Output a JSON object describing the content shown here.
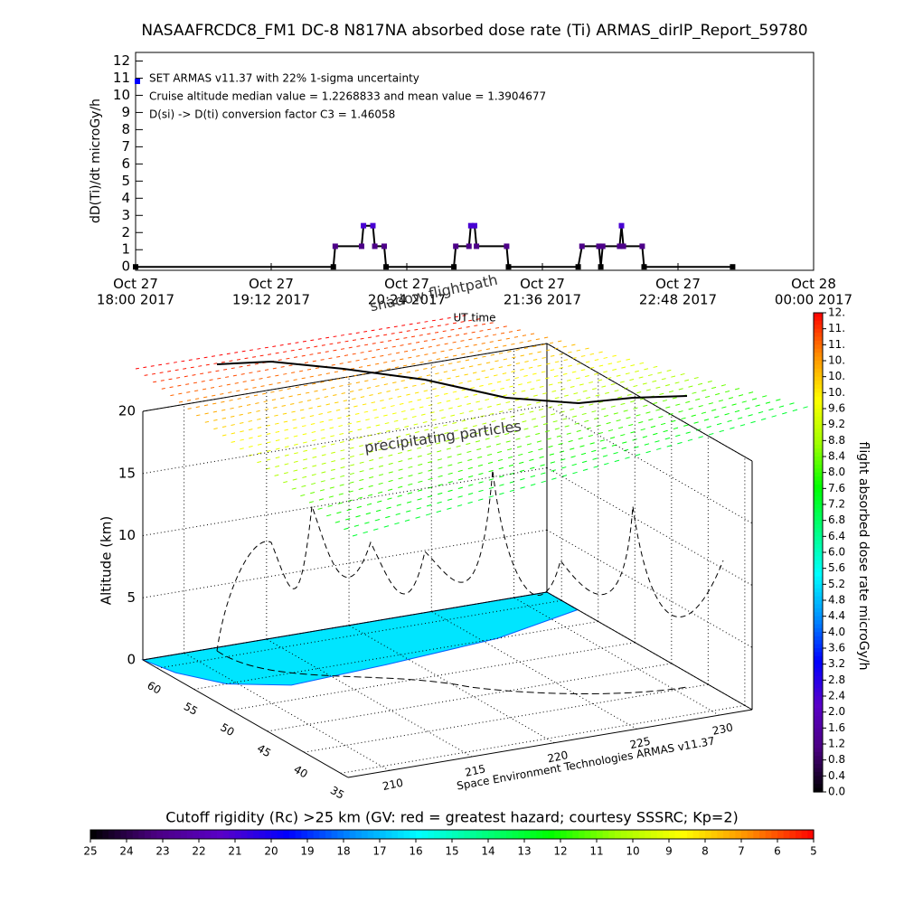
{
  "chart_data": [
    {
      "type": "line",
      "title": "NASAAFRCDC8_FM1 DC-8   N817NA absorbed dose rate (Ti) ARMAS_dirIP_Report_59780",
      "xlabel": "UT time",
      "ylabel": "dD(Ti)/dt microGy/h",
      "annotations": [
        "SET ARMAS v11.37 with 22% 1-sigma uncertainty",
        "Cruise altitude median value = 1.2268833 and mean value = 1.3904677",
        "D(si) -> D(ti) conversion factor C3 = 1.46058"
      ],
      "x": [
        "2017-10-27 18:00",
        "2017-10-27 19:45",
        "2017-10-27 19:46",
        "2017-10-27 20:00",
        "2017-10-27 20:01",
        "2017-10-27 20:06",
        "2017-10-27 20:07",
        "2017-10-27 20:12",
        "2017-10-27 20:13",
        "2017-10-27 20:49",
        "2017-10-27 20:50",
        "2017-10-27 20:57",
        "2017-10-27 20:58",
        "2017-10-27 21:00",
        "2017-10-27 21:01",
        "2017-10-27 21:17",
        "2017-10-27 21:18",
        "2017-10-27 21:55",
        "2017-10-27 21:57",
        "2017-10-27 22:06",
        "2017-10-27 22:07",
        "2017-10-27 22:08",
        "2017-10-27 22:17",
        "2017-10-27 22:18",
        "2017-10-27 22:19",
        "2017-10-27 22:29",
        "2017-10-27 22:30",
        "2017-10-27 23:17"
      ],
      "series": [
        {
          "color": "#000000",
          "values": [
            0,
            0,
            1.2,
            1.2,
            2.4,
            2.4,
            1.2,
            1.2,
            0,
            0,
            1.2,
            1.2,
            2.4,
            2.4,
            1.2,
            1.2,
            0,
            0,
            1.2,
            1.2,
            0,
            1.2,
            1.2,
            2.4,
            1.2,
            1.2,
            0,
            0
          ]
        }
      ],
      "xlim": [
        "2017-10-27 18:00",
        "2017-10-28 00:00"
      ],
      "xticks": [
        {
          "value": "2017-10-27 18:00",
          "label": "Oct 27\n18:00 2017"
        },
        {
          "value": "2017-10-27 19:12",
          "label": "Oct 27\n19:12 2017"
        },
        {
          "value": "2017-10-27 20:24",
          "label": "Oct 27\n20:24 2017"
        },
        {
          "value": "2017-10-27 21:36",
          "label": "Oct 27\n21:36 2017"
        },
        {
          "value": "2017-10-27 22:48",
          "label": "Oct 27\n22:48 2017"
        },
        {
          "value": "2017-10-28 00:00",
          "label": "Oct 28\n00:00 2017"
        }
      ],
      "ylim": [
        -0.2,
        12.5
      ],
      "yticks": [
        0,
        1,
        2,
        3,
        4,
        5,
        6,
        7,
        8,
        9,
        10,
        11,
        12
      ]
    },
    {
      "type": "scatter3d",
      "zlabel": "Altitude (km)",
      "zlim": [
        0,
        20
      ],
      "zticks": [
        0,
        5,
        10,
        15,
        20
      ],
      "ylim": [
        62,
        34
      ],
      "yticks": [
        60,
        55,
        50,
        45,
        40,
        35
      ],
      "xlim": [
        207.5,
        232
      ],
      "xticks": [
        210,
        215,
        220,
        225,
        230
      ],
      "annotations": [
        "precipitating particles",
        "shadow flightpath",
        "Space Environment Technologies ARMAS v11.37"
      ]
    },
    {
      "type": "colorbar",
      "orientation": "vertical",
      "label": "flight absorbed dose rate microGy/h",
      "lim": [
        0,
        12
      ],
      "ticks": [
        {
          "value": 0,
          "label": "0.0"
        },
        {
          "value": 0.4,
          "label": "0.4"
        },
        {
          "value": 0.8,
          "label": "0.8"
        },
        {
          "value": 1.2,
          "label": "1.2"
        },
        {
          "value": 1.6,
          "label": "1.6"
        },
        {
          "value": 2,
          "label": "2.0"
        },
        {
          "value": 2.4,
          "label": "2.4"
        },
        {
          "value": 2.8,
          "label": "2.8"
        },
        {
          "value": 3.2,
          "label": "3.2"
        },
        {
          "value": 3.6,
          "label": "3.6"
        },
        {
          "value": 4,
          "label": "4.0"
        },
        {
          "value": 4.4,
          "label": "4.4"
        },
        {
          "value": 4.8,
          "label": "4.8"
        },
        {
          "value": 5.2,
          "label": "5.2"
        },
        {
          "value": 5.6,
          "label": "5.6"
        },
        {
          "value": 6,
          "label": "6.0"
        },
        {
          "value": 6.4,
          "label": "6.4"
        },
        {
          "value": 6.8,
          "label": "6.8"
        },
        {
          "value": 7.2,
          "label": "7.2"
        },
        {
          "value": 7.6,
          "label": "7.6"
        },
        {
          "value": 8,
          "label": "8.0"
        },
        {
          "value": 8.4,
          "label": "8.4"
        },
        {
          "value": 8.8,
          "label": "8.8"
        },
        {
          "value": 9.2,
          "label": "9.2"
        },
        {
          "value": 9.6,
          "label": "9.6"
        },
        {
          "value": 10,
          "label": "10."
        },
        {
          "value": 10.4,
          "label": "10."
        },
        {
          "value": 10.8,
          "label": "10."
        },
        {
          "value": 11.2,
          "label": "11."
        },
        {
          "value": 11.6,
          "label": "11."
        },
        {
          "value": 12,
          "label": "12."
        }
      ],
      "colors": [
        "#000000",
        "#4b0082",
        "#5a00c8",
        "#0000ff",
        "#0090ff",
        "#00ffff",
        "#00ff80",
        "#00ff00",
        "#a0ff00",
        "#ffff00",
        "#ff9000",
        "#ff0000"
      ]
    },
    {
      "type": "colorbar",
      "orientation": "horizontal",
      "label": "Cutoff rigidity (Rc) >25 km (GV: red = greatest hazard; courtesy SSSRC; Kp=2)",
      "lim": [
        25,
        5
      ],
      "ticks": [
        25,
        24,
        23,
        22,
        21,
        20,
        19,
        18,
        17,
        16,
        15,
        14,
        13,
        12,
        11,
        10,
        9,
        8,
        7,
        6,
        5
      ],
      "colors": [
        "#000000",
        "#4b0082",
        "#5a00c8",
        "#0000ff",
        "#0090ff",
        "#00ffff",
        "#00ff80",
        "#00ff00",
        "#a0ff00",
        "#ffff00",
        "#ff9000",
        "#ff0000"
      ]
    }
  ]
}
